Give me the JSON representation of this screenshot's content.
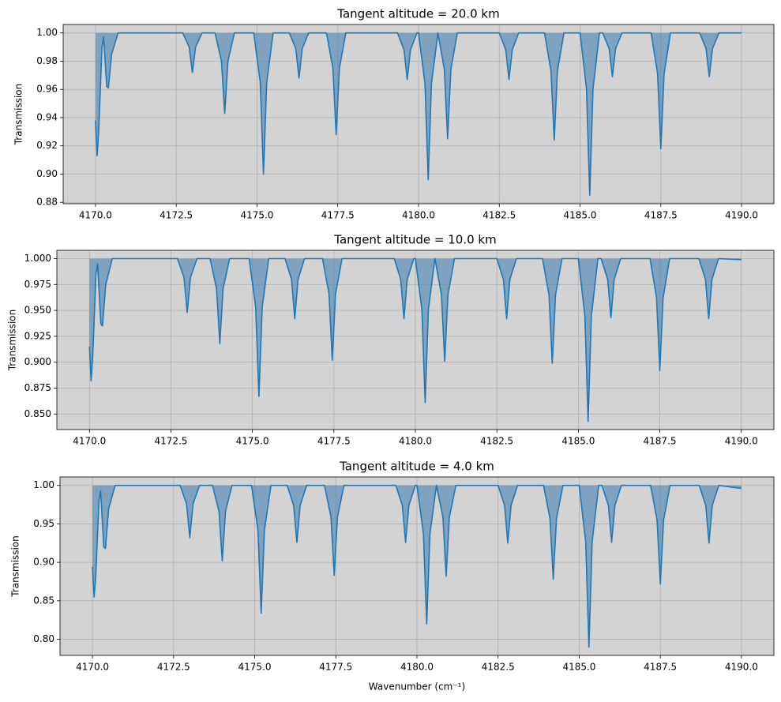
{
  "chart_data": [
    {
      "type": "line",
      "title": "Tangent altitude = 20.0 km",
      "ylabel": "Transmission",
      "color": "#1f77b4",
      "fill_color": "#4682b4",
      "fill_to": 1.0,
      "background": "#d3d3d3",
      "grid": true,
      "xlim": [
        4169,
        4191
      ],
      "ylim": [
        0.879,
        1.006
      ],
      "xticks": [
        {
          "value": 4170,
          "label": "4170.0"
        },
        4172.5,
        {
          "value": 4175,
          "label": "4175.0"
        },
        4177.5,
        {
          "value": 4180,
          "label": "4180.0"
        },
        4182.5,
        {
          "value": 4185,
          "label": "4185.0"
        },
        4187.5,
        {
          "value": 4190,
          "label": "4190.0"
        }
      ],
      "yticks": [
        {
          "value": 0.88,
          "label": "0.88"
        },
        {
          "value": 0.9,
          "label": "0.90"
        },
        {
          "value": 0.92,
          "label": "0.92"
        },
        {
          "value": 0.94,
          "label": "0.94"
        },
        {
          "value": 0.96,
          "label": "0.96"
        },
        {
          "value": 0.98,
          "label": "0.98"
        },
        {
          "value": 1.0,
          "label": "1.00"
        }
      ],
      "x": [
        4170.0,
        4170.05,
        4170.1,
        4170.2,
        4170.25,
        4170.35,
        4170.4,
        4170.5,
        4170.7,
        4172.7,
        4172.9,
        4173.0,
        4173.1,
        4173.3,
        4173.7,
        4173.9,
        4174.0,
        4174.1,
        4174.3,
        4174.9,
        4175.1,
        4175.2,
        4175.3,
        4175.5,
        4176.0,
        4176.2,
        4176.3,
        4176.4,
        4176.6,
        4177.15,
        4177.35,
        4177.45,
        4177.55,
        4177.75,
        4179.35,
        4179.55,
        4179.65,
        4179.75,
        4179.95,
        4180.0,
        4180.2,
        4180.3,
        4180.4,
        4180.6,
        4180.8,
        4180.9,
        4181.0,
        4181.2,
        4182.5,
        4182.7,
        4182.8,
        4182.9,
        4183.1,
        4183.9,
        4184.1,
        4184.2,
        4184.3,
        4184.5,
        4185.0,
        4185.2,
        4185.3,
        4185.4,
        4185.6,
        4185.7,
        4185.9,
        4186.0,
        4186.1,
        4186.3,
        4187.2,
        4187.4,
        4187.5,
        4187.6,
        4187.8,
        4188.7,
        4188.9,
        4189.0,
        4189.1,
        4189.3,
        4190.0
      ],
      "values": [
        0.938,
        0.913,
        0.93,
        0.99,
        0.997,
        0.962,
        0.961,
        0.985,
        1.0,
        1.0,
        0.99,
        0.972,
        0.99,
        1.0,
        1.0,
        0.98,
        0.943,
        0.98,
        1.0,
        1.0,
        0.965,
        0.9,
        0.965,
        1.0,
        1.0,
        0.989,
        0.968,
        0.989,
        1.0,
        1.0,
        0.975,
        0.928,
        0.975,
        1.0,
        1.0,
        0.988,
        0.967,
        0.988,
        1.0,
        1.0,
        0.964,
        0.896,
        0.964,
        1.0,
        0.974,
        0.925,
        0.974,
        1.0,
        1.0,
        0.988,
        0.967,
        0.988,
        1.0,
        1.0,
        0.973,
        0.924,
        0.973,
        1.0,
        1.0,
        0.96,
        0.885,
        0.96,
        1.0,
        1.0,
        0.989,
        0.969,
        0.989,
        1.0,
        1.0,
        0.971,
        0.918,
        0.971,
        1.0,
        1.0,
        0.989,
        0.969,
        0.989,
        1.0,
        1.0
      ]
    },
    {
      "type": "line",
      "title": "Tangent altitude = 10.0 km",
      "ylabel": "Transmission",
      "color": "#1f77b4",
      "fill_color": "#4682b4",
      "fill_to": 1.0,
      "background": "#d3d3d3",
      "grid": true,
      "xlim": [
        4169,
        4191
      ],
      "ylim": [
        0.835,
        1.008
      ],
      "xticks": [
        {
          "value": 4170,
          "label": "4170.0"
        },
        4172.5,
        {
          "value": 4175,
          "label": "4175.0"
        },
        4177.5,
        {
          "value": 4180,
          "label": "4180.0"
        },
        4182.5,
        {
          "value": 4185,
          "label": "4185.0"
        },
        4187.5,
        {
          "value": 4190,
          "label": "4190.0"
        }
      ],
      "yticks": [
        {
          "value": 0.85,
          "label": "0.850"
        },
        {
          "value": 0.875,
          "label": "0.875"
        },
        {
          "value": 0.9,
          "label": "0.900"
        },
        {
          "value": 0.925,
          "label": "0.925"
        },
        {
          "value": 0.95,
          "label": "0.950"
        },
        {
          "value": 0.975,
          "label": "0.975"
        },
        {
          "value": 1.0,
          "label": "1.000"
        }
      ],
      "x": [
        4170.0,
        4170.05,
        4170.1,
        4170.2,
        4170.25,
        4170.35,
        4170.4,
        4170.5,
        4170.7,
        4172.7,
        4172.9,
        4173.0,
        4173.1,
        4173.3,
        4173.7,
        4173.9,
        4174.0,
        4174.1,
        4174.3,
        4174.9,
        4175.1,
        4175.2,
        4175.3,
        4175.5,
        4176.0,
        4176.2,
        4176.3,
        4176.4,
        4176.6,
        4177.15,
        4177.35,
        4177.45,
        4177.55,
        4177.75,
        4179.35,
        4179.55,
        4179.65,
        4179.75,
        4179.95,
        4180.0,
        4180.2,
        4180.3,
        4180.4,
        4180.6,
        4180.8,
        4180.9,
        4181.0,
        4181.2,
        4182.5,
        4182.7,
        4182.8,
        4182.9,
        4183.1,
        4183.9,
        4184.1,
        4184.2,
        4184.3,
        4184.5,
        4185.0,
        4185.2,
        4185.3,
        4185.4,
        4185.6,
        4185.7,
        4185.9,
        4186.0,
        4186.1,
        4186.3,
        4187.2,
        4187.4,
        4187.5,
        4187.6,
        4187.8,
        4188.7,
        4188.9,
        4189.0,
        4189.1,
        4189.3,
        4190.0
      ],
      "values": [
        0.915,
        0.882,
        0.905,
        0.985,
        0.995,
        0.937,
        0.935,
        0.975,
        1.0,
        1.0,
        0.982,
        0.948,
        0.982,
        1.0,
        1.0,
        0.971,
        0.918,
        0.971,
        1.0,
        1.0,
        0.953,
        0.867,
        0.953,
        1.0,
        1.0,
        0.98,
        0.942,
        0.98,
        1.0,
        1.0,
        0.966,
        0.902,
        0.966,
        1.0,
        1.0,
        0.98,
        0.942,
        0.98,
        1.0,
        1.0,
        0.951,
        0.861,
        0.951,
        1.0,
        0.965,
        0.901,
        0.965,
        1.0,
        1.0,
        0.98,
        0.942,
        0.98,
        1.0,
        1.0,
        0.965,
        0.899,
        0.965,
        1.0,
        1.0,
        0.945,
        0.843,
        0.945,
        1.0,
        1.0,
        0.98,
        0.943,
        0.98,
        1.0,
        1.0,
        0.962,
        0.892,
        0.962,
        1.0,
        1.0,
        0.98,
        0.942,
        0.98,
        1.0,
        0.999
      ]
    },
    {
      "type": "line",
      "title": "Tangent altitude = 4.0 km",
      "ylabel": "Transmission",
      "xlabel": "Wavenumber (cm⁻¹)",
      "color": "#1f77b4",
      "fill_color": "#4682b4",
      "fill_to": 1.0,
      "background": "#d3d3d3",
      "grid": true,
      "xlim": [
        4169,
        4191
      ],
      "ylim": [
        0.779,
        1.011
      ],
      "xticks": [
        {
          "value": 4170,
          "label": "4170.0"
        },
        4172.5,
        {
          "value": 4175,
          "label": "4175.0"
        },
        4177.5,
        {
          "value": 4180,
          "label": "4180.0"
        },
        4182.5,
        {
          "value": 4185,
          "label": "4185.0"
        },
        4187.5,
        {
          "value": 4190,
          "label": "4190.0"
        }
      ],
      "yticks": [
        {
          "value": 0.8,
          "label": "0.80"
        },
        {
          "value": 0.85,
          "label": "0.85"
        },
        {
          "value": 0.9,
          "label": "0.90"
        },
        {
          "value": 0.95,
          "label": "0.95"
        },
        {
          "value": 1.0,
          "label": "1.00"
        }
      ],
      "x": [
        4170.0,
        4170.05,
        4170.1,
        4170.2,
        4170.25,
        4170.35,
        4170.4,
        4170.5,
        4170.7,
        4172.7,
        4172.9,
        4173.0,
        4173.1,
        4173.3,
        4173.7,
        4173.9,
        4174.0,
        4174.1,
        4174.3,
        4174.9,
        4175.1,
        4175.2,
        4175.3,
        4175.5,
        4176.0,
        4176.2,
        4176.3,
        4176.4,
        4176.6,
        4177.15,
        4177.35,
        4177.45,
        4177.55,
        4177.75,
        4179.35,
        4179.55,
        4179.65,
        4179.75,
        4179.95,
        4180.0,
        4180.2,
        4180.3,
        4180.4,
        4180.6,
        4180.8,
        4180.9,
        4181.0,
        4181.2,
        4182.5,
        4182.7,
        4182.8,
        4182.9,
        4183.1,
        4183.9,
        4184.1,
        4184.2,
        4184.3,
        4184.5,
        4185.0,
        4185.2,
        4185.3,
        4185.4,
        4185.6,
        4185.7,
        4185.9,
        4186.0,
        4186.1,
        4186.3,
        4187.2,
        4187.4,
        4187.5,
        4187.6,
        4187.8,
        4188.7,
        4188.9,
        4189.0,
        4189.1,
        4189.3,
        4190.0
      ],
      "values": [
        0.894,
        0.855,
        0.88,
        0.98,
        0.993,
        0.92,
        0.918,
        0.97,
        1.0,
        1.0,
        0.976,
        0.932,
        0.976,
        1.0,
        1.0,
        0.966,
        0.902,
        0.966,
        1.0,
        1.0,
        0.942,
        0.834,
        0.942,
        1.0,
        1.0,
        0.974,
        0.926,
        0.974,
        1.0,
        1.0,
        0.959,
        0.883,
        0.959,
        1.0,
        1.0,
        0.974,
        0.926,
        0.974,
        1.0,
        1.0,
        0.937,
        0.82,
        0.937,
        1.0,
        0.959,
        0.882,
        0.959,
        1.0,
        1.0,
        0.974,
        0.925,
        0.974,
        1.0,
        1.0,
        0.957,
        0.878,
        0.957,
        1.0,
        1.0,
        0.927,
        0.79,
        0.927,
        1.0,
        1.0,
        0.974,
        0.926,
        0.974,
        1.0,
        1.0,
        0.955,
        0.872,
        0.955,
        1.0,
        1.0,
        0.974,
        0.925,
        0.974,
        1.0,
        0.996
      ]
    }
  ]
}
